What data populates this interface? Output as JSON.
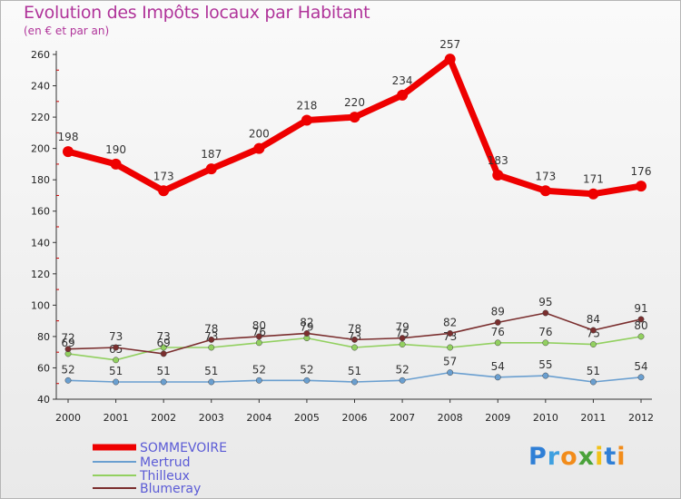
{
  "chart_data": {
    "type": "line",
    "title": "Evolution des Impôts locaux par Habitant",
    "subtitle": "(en € et par an)",
    "categories": [
      "2000",
      "2001",
      "2002",
      "2003",
      "2004",
      "2005",
      "2006",
      "2007",
      "2008",
      "2009",
      "2010",
      "2011",
      "2012"
    ],
    "ylim": [
      40,
      260
    ],
    "yticks": [
      40,
      60,
      80,
      100,
      120,
      140,
      160,
      180,
      200,
      220,
      240,
      260
    ],
    "grid": false,
    "legend_position": "bottom-left",
    "series": [
      {
        "name": "SOMMEVOIRE",
        "color": "#ee0000",
        "values": [
          198,
          190,
          173,
          187,
          200,
          218,
          220,
          234,
          257,
          183,
          173,
          171,
          176
        ]
      },
      {
        "name": "Mertrud",
        "color": "#6a9fd0",
        "values": [
          52,
          51,
          51,
          51,
          52,
          52,
          51,
          52,
          57,
          54,
          55,
          51,
          54
        ]
      },
      {
        "name": "Thilleux",
        "color": "#92d060",
        "values": [
          69,
          65,
          73,
          73,
          76,
          79,
          73,
          75,
          73,
          76,
          76,
          75,
          80
        ]
      },
      {
        "name": "Blumeray",
        "color": "#7a2e2e",
        "values": [
          72,
          73,
          69,
          78,
          80,
          82,
          78,
          79,
          82,
          89,
          95,
          84,
          91
        ]
      }
    ]
  },
  "logo": {
    "text": "Proxiti",
    "letters": [
      "P",
      "r",
      "o",
      "x",
      "i",
      "t",
      "i"
    ],
    "colors": [
      "#2f7fd6",
      "#3ea0e0",
      "#f28c1a",
      "#4aa23a",
      "#f2c21a",
      "#2f7fd6",
      "#f28c1a"
    ]
  }
}
